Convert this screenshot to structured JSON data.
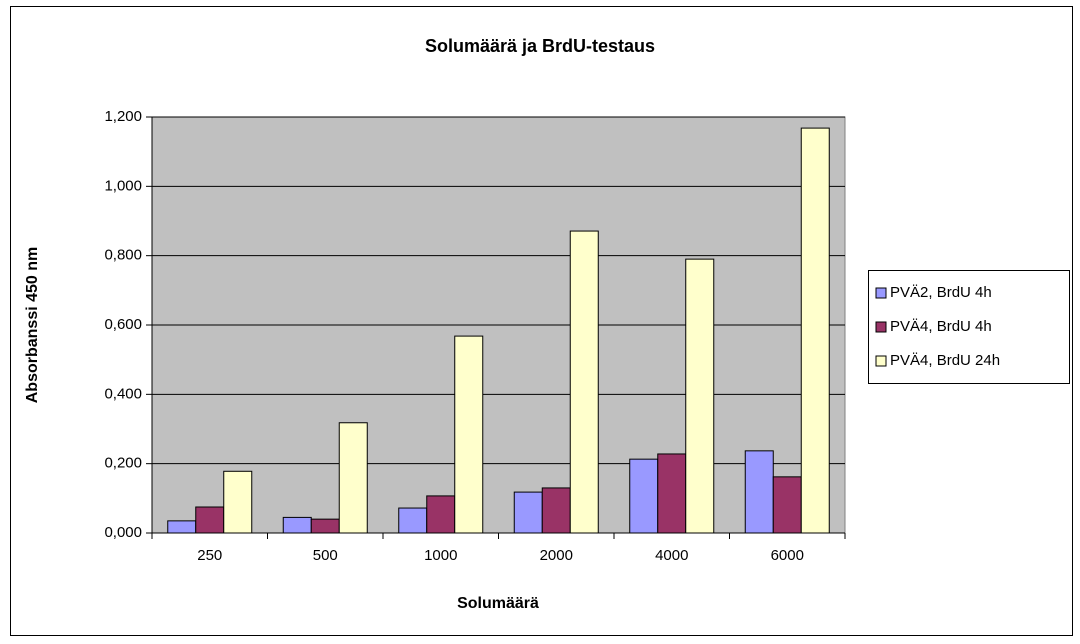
{
  "chart_data": {
    "type": "bar",
    "title": "Solumäärä ja BrdU-testaus",
    "x_label": "Solumäärä",
    "y_label": "Absorbanssi 450 nm",
    "categories": [
      "250",
      "500",
      "1000",
      "2000",
      "4000",
      "6000"
    ],
    "series": [
      {
        "name": "PVÄ2, BrdU 4h",
        "color": "#9999ff",
        "values": [
          0.035,
          0.045,
          0.072,
          0.118,
          0.213,
          0.237
        ]
      },
      {
        "name": "PVÄ4, BrdU 4h",
        "color": "#993366",
        "values": [
          0.075,
          0.04,
          0.107,
          0.13,
          0.228,
          0.162
        ]
      },
      {
        "name": "PVÄ4, BrdU 24h",
        "color": "#ffffcc",
        "values": [
          0.178,
          0.318,
          0.568,
          0.871,
          0.79,
          1.168
        ]
      }
    ],
    "ylim": [
      0,
      1.2
    ],
    "yticks": [
      {
        "value": 0,
        "label": "0,000"
      },
      {
        "value": 0.2,
        "label": "0,200"
      },
      {
        "value": 0.4,
        "label": "0,400"
      },
      {
        "value": 0.6,
        "label": "0,600"
      },
      {
        "value": 0.8,
        "label": "0,800"
      },
      {
        "value": 1.0,
        "label": "1,000"
      },
      {
        "value": 1.2,
        "label": "1,200"
      }
    ],
    "grid": true,
    "legend": "right",
    "plot_background": "#c0c0c0"
  }
}
